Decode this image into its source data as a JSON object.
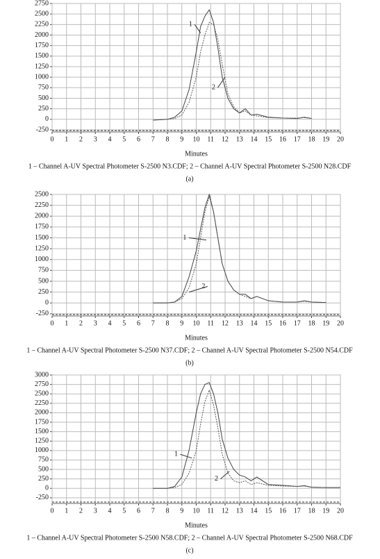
{
  "chart_data": [
    {
      "type": "line",
      "xlabel": "Minutes",
      "caption": "1 – Channel A-UV Spectral Photometer S-2500 N3.CDF; 2 – Channel A-UV Spectral Photometer S-2500 N28.CDF",
      "label": "(a)",
      "x": [
        7,
        8,
        8.5,
        9,
        9.5,
        10,
        10.3,
        10.6,
        10.9,
        11.2,
        11.5,
        11.8,
        12.2,
        12.6,
        13,
        13.4,
        13.8,
        14.2,
        15,
        16,
        17,
        17.5,
        18,
        19,
        20
      ],
      "xlim": [
        0,
        20
      ],
      "xticks": [
        0,
        1,
        2,
        3,
        4,
        5,
        6,
        7,
        8,
        9,
        10,
        11,
        12,
        13,
        14,
        15,
        16,
        17,
        18,
        19,
        20
      ],
      "ylim": [
        -300,
        2750
      ],
      "yticks": [
        -250,
        0,
        250,
        500,
        750,
        1000,
        1250,
        1500,
        1750,
        2000,
        2250,
        2500,
        2750
      ],
      "grid": true,
      "series": [
        {
          "name": "1",
          "color": "#444444",
          "line_style": "solid",
          "values": [
            -20,
            0,
            50,
            200,
            700,
            1600,
            2200,
            2450,
            2600,
            2300,
            1700,
            1000,
            500,
            250,
            150,
            250,
            100,
            120,
            50,
            30,
            20,
            50,
            20,
            null,
            null
          ]
        },
        {
          "name": "2",
          "color": "#555555",
          "line_style": "dotted",
          "values": [
            -20,
            0,
            20,
            100,
            400,
            1000,
            1600,
            2000,
            2300,
            2250,
            1900,
            1300,
            600,
            300,
            150,
            200,
            100,
            80,
            40,
            30,
            30,
            40,
            20,
            null,
            null
          ]
        }
      ]
    },
    {
      "type": "line",
      "xlabel": "Minutes",
      "caption": "1 – Channel A-UV Spectral Photometer S-2500 N37.CDF; 2 – Channel A-UV Spectral Photometer S-2500 N54.CDF",
      "label": "(b)",
      "x": [
        7,
        8,
        8.5,
        9,
        9.5,
        10,
        10.3,
        10.6,
        10.9,
        11.2,
        11.5,
        11.8,
        12.2,
        12.6,
        13,
        13.4,
        13.8,
        14.2,
        15,
        16,
        17,
        17.5,
        18,
        19,
        20
      ],
      "xlim": [
        0,
        20
      ],
      "xticks": [
        0,
        1,
        2,
        3,
        4,
        5,
        6,
        7,
        8,
        9,
        10,
        11,
        12,
        13,
        14,
        15,
        16,
        17,
        18,
        19,
        20
      ],
      "ylim": [
        -300,
        2500
      ],
      "yticks": [
        -250,
        0,
        250,
        500,
        750,
        1000,
        1250,
        1500,
        1750,
        2000,
        2250,
        2500
      ],
      "grid": true,
      "series": [
        {
          "name": "1",
          "color": "#444444",
          "line_style": "solid",
          "values": [
            0,
            0,
            20,
            150,
            600,
            1200,
            1700,
            2200,
            2500,
            2100,
            1500,
            900,
            500,
            300,
            200,
            200,
            100,
            150,
            50,
            20,
            20,
            50,
            20,
            10,
            null
          ]
        },
        {
          "name": "2",
          "color": "#555555",
          "line_style": "dotted",
          "values": [
            0,
            0,
            20,
            100,
            350,
            900,
            1500,
            2100,
            2450,
            2100,
            1500,
            900,
            500,
            300,
            200,
            150,
            100,
            150,
            50,
            20,
            20,
            40,
            20,
            10,
            null
          ]
        }
      ]
    },
    {
      "type": "line",
      "xlabel": "Minutes",
      "caption": "1 – Channel A-UV Spectral Photometer S-2500 N58.CDF; 2 – Channel A-UV Spectral Photometer S-2500 N68.CDF",
      "label": "(c)",
      "x": [
        7,
        8,
        8.5,
        9,
        9.5,
        10,
        10.3,
        10.6,
        10.9,
        11.2,
        11.5,
        11.8,
        12.2,
        12.6,
        13,
        13.4,
        13.8,
        14.2,
        15,
        16,
        17,
        17.5,
        18,
        19,
        20
      ],
      "xlim": [
        0,
        20
      ],
      "xticks": [
        0,
        1,
        2,
        3,
        4,
        5,
        6,
        7,
        8,
        9,
        10,
        11,
        12,
        13,
        14,
        15,
        16,
        17,
        18,
        19,
        20
      ],
      "ylim": [
        -400,
        3000
      ],
      "yticks": [
        -250,
        0,
        250,
        500,
        750,
        1000,
        1250,
        1500,
        1750,
        2000,
        2250,
        2500,
        2750,
        3000
      ],
      "grid": true,
      "series": [
        {
          "name": "1",
          "color": "#444444",
          "line_style": "solid",
          "values": [
            0,
            0,
            50,
            300,
            1000,
            2000,
            2500,
            2750,
            2800,
            2500,
            2000,
            1300,
            800,
            500,
            350,
            300,
            200,
            300,
            100,
            80,
            50,
            70,
            30,
            20,
            20
          ]
        },
        {
          "name": "2",
          "color": "#555555",
          "line_style": "dotted",
          "values": [
            0,
            0,
            20,
            100,
            400,
            1000,
            1700,
            2300,
            2600,
            2200,
            1600,
            900,
            400,
            200,
            150,
            200,
            100,
            150,
            80,
            60,
            50,
            60,
            30,
            20,
            20
          ]
        }
      ]
    }
  ]
}
